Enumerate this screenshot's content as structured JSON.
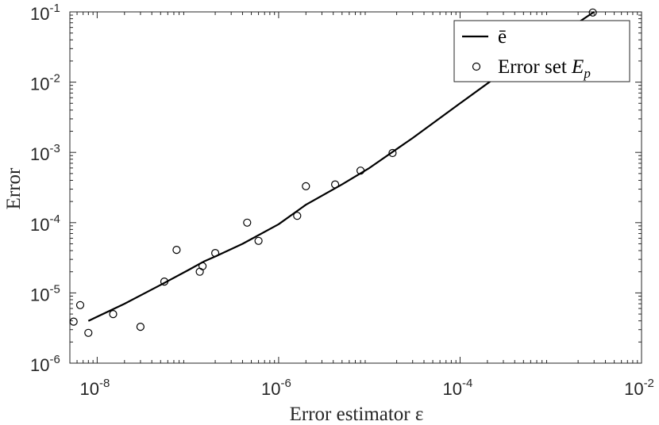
{
  "chart_data": {
    "type": "scatter",
    "xlabel": "Error estimator ε",
    "ylabel": "Error",
    "xscale": "log",
    "yscale": "log",
    "xlim": [
      5e-09,
      0.01
    ],
    "ylim": [
      1e-06,
      0.1
    ],
    "xticks": [
      {
        "value": 1e-08,
        "base": "10",
        "exp": "-8"
      },
      {
        "value": 1e-06,
        "base": "10",
        "exp": "-6"
      },
      {
        "value": 0.0001,
        "base": "10",
        "exp": "-4"
      },
      {
        "value": 0.01,
        "base": "10",
        "exp": "-2"
      }
    ],
    "yticks": [
      {
        "value": 1e-06,
        "base": "10",
        "exp": "-6"
      },
      {
        "value": 1e-05,
        "base": "10",
        "exp": "-5"
      },
      {
        "value": 0.0001,
        "base": "10",
        "exp": "-4"
      },
      {
        "value": 0.001,
        "base": "10",
        "exp": "-3"
      },
      {
        "value": 0.01,
        "base": "10",
        "exp": "-2"
      },
      {
        "value": 0.1,
        "base": "10",
        "exp": "-1"
      }
    ],
    "grid": false,
    "legend": {
      "position": "top-right"
    },
    "series": [
      {
        "name": "ē",
        "kind": "line",
        "color": "#000000",
        "x": [
          8e-09,
          2e-08,
          5e-08,
          1e-07,
          1.5e-07,
          2e-07,
          4e-07,
          1e-06,
          2e-06,
          5e-06,
          1e-05,
          3e-05,
          0.0001,
          0.0003,
          0.001,
          0.003
        ],
        "y": [
          4e-06,
          7e-06,
          1.3e-05,
          2.1e-05,
          2.8e-05,
          3.3e-05,
          5e-05,
          9.5e-05,
          0.00018,
          0.00035,
          0.0006,
          0.0016,
          0.005,
          0.014,
          0.039,
          0.1
        ]
      },
      {
        "name": "Error set E_p",
        "legend_label": "Error set",
        "legend_symbol": "E",
        "legend_sub": "p",
        "kind": "scatter",
        "marker": "circle-open",
        "color": "#000000",
        "x": [
          5.5e-09,
          6.5e-09,
          8e-09,
          1.5e-08,
          3e-08,
          5.5e-08,
          7.5e-08,
          1.35e-07,
          1.45e-07,
          2e-07,
          4.5e-07,
          6e-07,
          1.6e-06,
          2e-06,
          4.2e-06,
          8e-06,
          1.8e-05,
          0.0029
        ],
        "y": [
          3.9e-06,
          6.7e-06,
          2.7e-06,
          5e-06,
          3.3e-06,
          1.45e-05,
          4.1e-05,
          2e-05,
          2.4e-05,
          3.7e-05,
          0.0001,
          5.5e-05,
          0.000125,
          0.00033,
          0.00035,
          0.00055,
          0.00098,
          0.098
        ]
      }
    ]
  }
}
